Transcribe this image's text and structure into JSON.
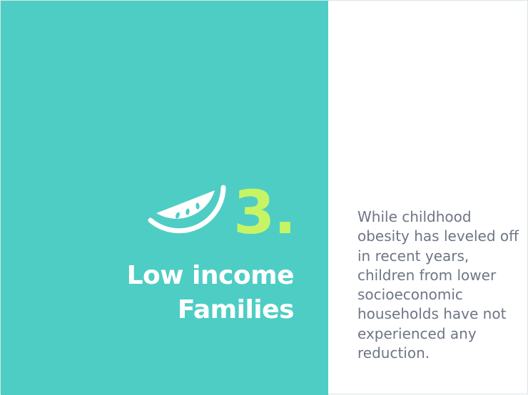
{
  "slide": {
    "number": "3.",
    "title_line1": "Low income",
    "title_line2": "Families",
    "body": "While childhood obesity has leveled off in recent years, children from lower socioeconomic households have not experienced any reduction.",
    "icon": "watermelon-slice-icon"
  },
  "colors": {
    "panel": "#4ecdc4",
    "number": "#c7f464",
    "title": "#ffffff",
    "body": "#6e7585"
  }
}
